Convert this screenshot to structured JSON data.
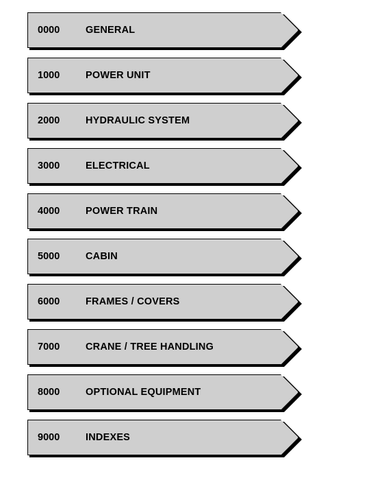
{
  "toc": {
    "item_height": 52,
    "gap": 14,
    "tab_color": "#cfcfcf",
    "shadow_color": "#000000",
    "text_color": "#000000",
    "font_size": 14.5,
    "font_weight": "bold",
    "items": [
      {
        "code": "0000",
        "label": "GENERAL"
      },
      {
        "code": "1000",
        "label": "POWER UNIT"
      },
      {
        "code": "2000",
        "label": "HYDRAULIC SYSTEM"
      },
      {
        "code": "3000",
        "label": "ELECTRICAL"
      },
      {
        "code": "4000",
        "label": "POWER TRAIN"
      },
      {
        "code": "5000",
        "label": "CABIN"
      },
      {
        "code": "6000",
        "label": "FRAMES / COVERS"
      },
      {
        "code": "7000",
        "label": "CRANE / TREE HANDLING"
      },
      {
        "code": "8000",
        "label": "OPTIONAL EQUIPMENT"
      },
      {
        "code": "9000",
        "label": "INDEXES"
      }
    ]
  }
}
